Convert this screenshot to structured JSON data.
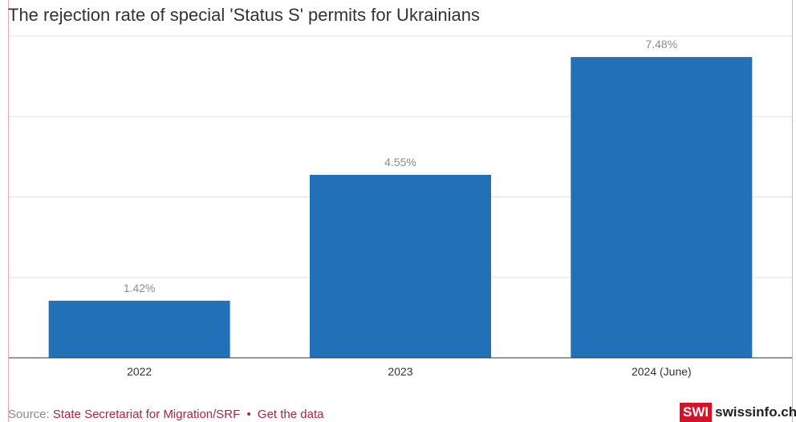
{
  "title": "The rejection rate of special 'Status S' permits for Ukrainians",
  "footer": {
    "source_prefix": "Source:",
    "source_name": "State Secretariat for Migration/SRF",
    "separator": "•",
    "data_link": "Get the data"
  },
  "logo": {
    "badge": "SWI",
    "word": "swissinfo.ch"
  },
  "colors": {
    "bar": "#2270b8",
    "grid": "#e2e2e2",
    "axis": "#333333",
    "label": "#8a8a8a"
  },
  "chart_data": {
    "type": "bar",
    "categories": [
      "2022",
      "2023",
      "2024 (June)"
    ],
    "values": [
      1.42,
      4.55,
      7.48
    ],
    "value_labels": [
      "1.42%",
      "4.55%",
      "7.48%"
    ],
    "ylim": [
      0,
      8
    ],
    "grid": true,
    "xlabel": "",
    "ylabel": ""
  }
}
